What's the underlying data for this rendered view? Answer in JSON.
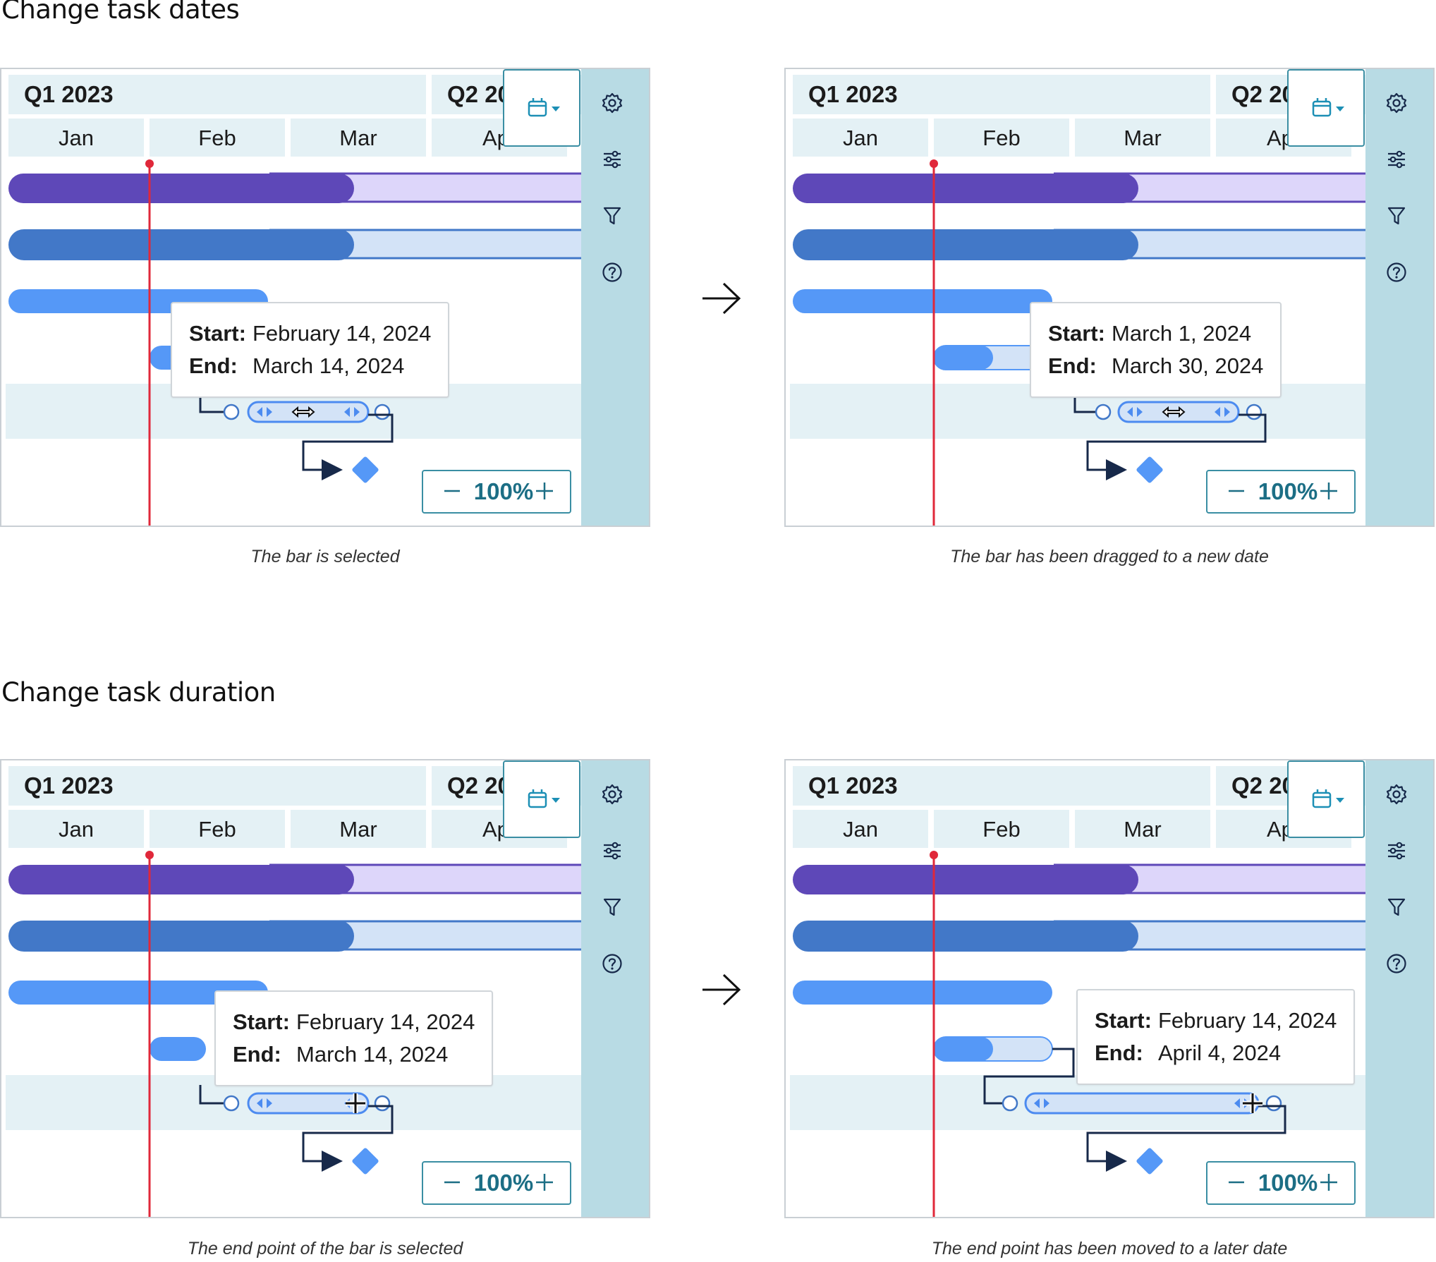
{
  "sections": [
    {
      "title": "Change task dates"
    },
    {
      "title": "Change task duration"
    }
  ],
  "header": {
    "quarters": [
      "Q1 2023",
      "Q2 20"
    ],
    "months": [
      "Jan",
      "Feb",
      "Mar",
      "Ap"
    ]
  },
  "icons": {
    "calendar": "calendar-icon",
    "dropdown": "caret-down-icon",
    "settings": "gear-icon",
    "sliders": "sliders-icon",
    "filter": "filter-icon",
    "help": "help-icon",
    "transition": "arrow-right-icon"
  },
  "colors": {
    "today_line": "#e0283a",
    "bar_purple": "#5e48b8",
    "bar_purple_light": "#ddd6fa",
    "bar_blue": "#4278c8",
    "bar_blue_light": "#d3e3f7",
    "bar_task": "#5598f7",
    "sidebar": "#b8dbe4",
    "accent": "#1c6e85"
  },
  "panels": [
    {
      "tooltip": {
        "start_label": "Start:",
        "start": "February 14, 2024",
        "end_label": "End:",
        "end": "March 14, 2024"
      },
      "zoom": "100%",
      "caption": "The bar is selected"
    },
    {
      "tooltip": {
        "start_label": "Start:",
        "start": "March 1, 2024",
        "end_label": "End:",
        "end": "March 30, 2024"
      },
      "zoom": "100%",
      "caption": "The bar has been dragged to a new date"
    },
    {
      "tooltip": {
        "start_label": "Start:",
        "start": "February 14, 2024",
        "end_label": "End:",
        "end": "March 14, 2024"
      },
      "zoom": "100%",
      "caption": "The end point of the bar is selected"
    },
    {
      "tooltip": {
        "start_label": "Start:",
        "start": "February 14, 2024",
        "end_label": "End:",
        "end": "April 4, 2024"
      },
      "zoom": "100%",
      "caption": "The end point has been moved to a later date"
    }
  ]
}
